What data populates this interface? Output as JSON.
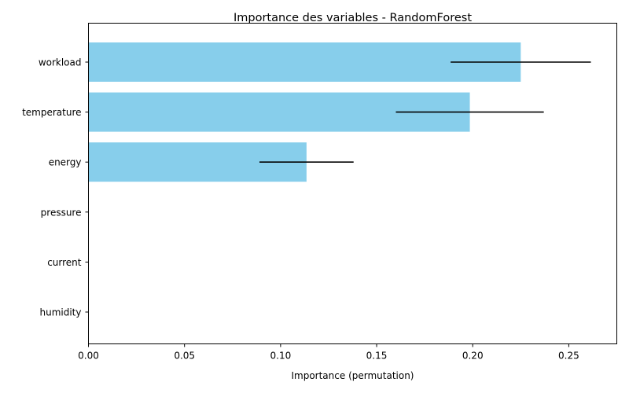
{
  "chart_data": {
    "type": "bar",
    "orientation": "horizontal",
    "title": "Importance des variables - RandomForest",
    "xlabel": "Importance (permutation)",
    "ylabel": "",
    "categories": [
      "workload",
      "temperature",
      "energy",
      "pressure",
      "current",
      "humidity"
    ],
    "values": [
      0.225,
      0.1985,
      0.1135,
      0.0,
      0.0,
      0.0
    ],
    "errors": [
      0.0365,
      0.0385,
      0.0245,
      0.0,
      0.0,
      0.0
    ],
    "xlim": [
      0.0,
      0.275
    ],
    "xticks": [
      "0.00",
      "0.05",
      "0.10",
      "0.15",
      "0.20",
      "0.25"
    ],
    "xtick_values": [
      0.0,
      0.05,
      0.1,
      0.15,
      0.2,
      0.25
    ],
    "grid": false,
    "bar_color": "#87ceeb",
    "error_color": "#000000"
  }
}
